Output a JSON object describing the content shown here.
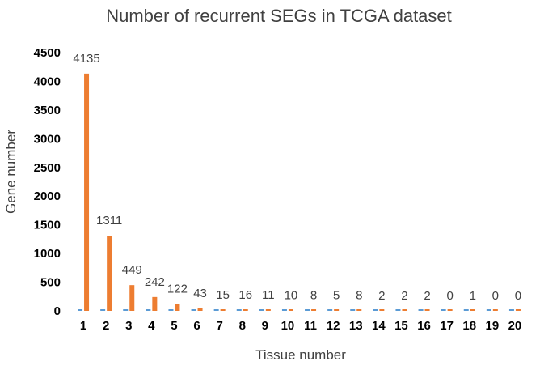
{
  "chart_data": {
    "type": "bar",
    "title": "Number of recurrent SEGs in TCGA dataset",
    "xlabel": "Tissue number",
    "ylabel": "Gene number",
    "ylim": [
      0,
      4500
    ],
    "yticks": [
      0,
      500,
      1000,
      1500,
      2000,
      2500,
      3000,
      3500,
      4000,
      4500
    ],
    "categories": [
      "1",
      "2",
      "3",
      "4",
      "5",
      "6",
      "7",
      "8",
      "9",
      "10",
      "11",
      "12",
      "13",
      "14",
      "15",
      "16",
      "17",
      "18",
      "19",
      "20"
    ],
    "series": [
      {
        "color": "#5B9BD5",
        "values": [
          0,
          0,
          0,
          0,
          0,
          0,
          0,
          0,
          0,
          0,
          0,
          0,
          0,
          0,
          0,
          0,
          0,
          0,
          0,
          0
        ]
      },
      {
        "color": "#ED7D31",
        "values": [
          4135,
          1311,
          449,
          242,
          122,
          43,
          15,
          16,
          11,
          10,
          8,
          5,
          8,
          2,
          2,
          2,
          0,
          1,
          0,
          0
        ]
      }
    ],
    "data_labels": [
      "4135",
      "1311",
      "449",
      "242",
      "122",
      "43",
      "15",
      "16",
      "11",
      "10",
      "8",
      "5",
      "8",
      "2",
      "2",
      "2",
      "0",
      "1",
      "0",
      "0"
    ],
    "grid": false
  }
}
